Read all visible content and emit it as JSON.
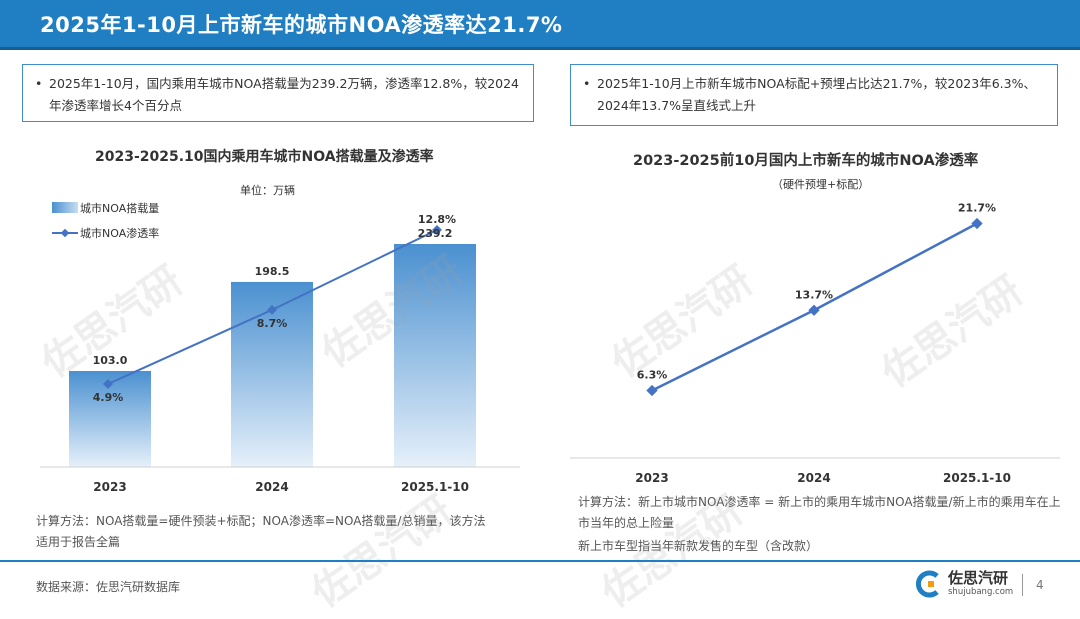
{
  "header": {
    "title": "2025年1-10月上市新车的城市NOA渗透率达21.7%"
  },
  "summary_left": "2025年1-10月，国内乘用车城市NOA搭载量为239.2万辆，渗透率12.8%，较2024年渗透率增长4个百分点",
  "summary_right": "2025年1-10月上市新车城市NOA标配+预埋占比达21.7%，较2023年6.3%、2024年13.7%呈直线式上升",
  "chart_data": [
    {
      "type": "bar",
      "title": "2023-2025.10国内乘用车城市NOA搭载量及渗透率",
      "unit": "单位：万辆",
      "categories": [
        "2023",
        "2024",
        "2025.1-10"
      ],
      "series": [
        {
          "name": "城市NOA搭载量",
          "type": "bar",
          "values": [
            103.0,
            198.5,
            239.2
          ],
          "labels": [
            "103.0",
            "198.5",
            "239.2"
          ],
          "color": "#4a90d0"
        },
        {
          "name": "城市NOA渗透率",
          "type": "line",
          "values": [
            4.9,
            8.7,
            12.8
          ],
          "labels": [
            "4.9%",
            "8.7%",
            "12.8%"
          ],
          "color": "#4472c4"
        }
      ],
      "legend": "top-left",
      "grid": false
    },
    {
      "type": "line",
      "title": "2023-2025前10月国内上市新车的城市NOA渗透率",
      "subtitle": "（硬件预埋+标配）",
      "categories": [
        "2023",
        "2024",
        "2025.1-10"
      ],
      "series": [
        {
          "values": [
            6.3,
            13.7,
            21.7
          ],
          "labels": [
            "6.3%",
            "13.7%",
            "21.7%"
          ],
          "color": "#4472c4"
        }
      ],
      "grid": false
    }
  ],
  "notes": {
    "left": "计算方法：NOA搭载量=硬件预装+标配；NOA渗透率=NOA搭载量/总销量，该方法适用于报告全篇",
    "right": "计算方法：新上市城市NOA渗透率 = 新上市的乘用车城市NOA搭载量/新上市的乘用车在上市当年的总上险量",
    "right2": "新上市车型指当年新款发售的车型（含改款）"
  },
  "footer": {
    "source": "数据来源：佐思汽研数据库",
    "logo_name": "佐思汽研",
    "logo_domain": "shujubang.com",
    "page": "4"
  },
  "watermark": "佐思汽研",
  "colors": {
    "accent": "#1f7fc2",
    "line": "#4472c4",
    "bar": "#4a90d0"
  }
}
